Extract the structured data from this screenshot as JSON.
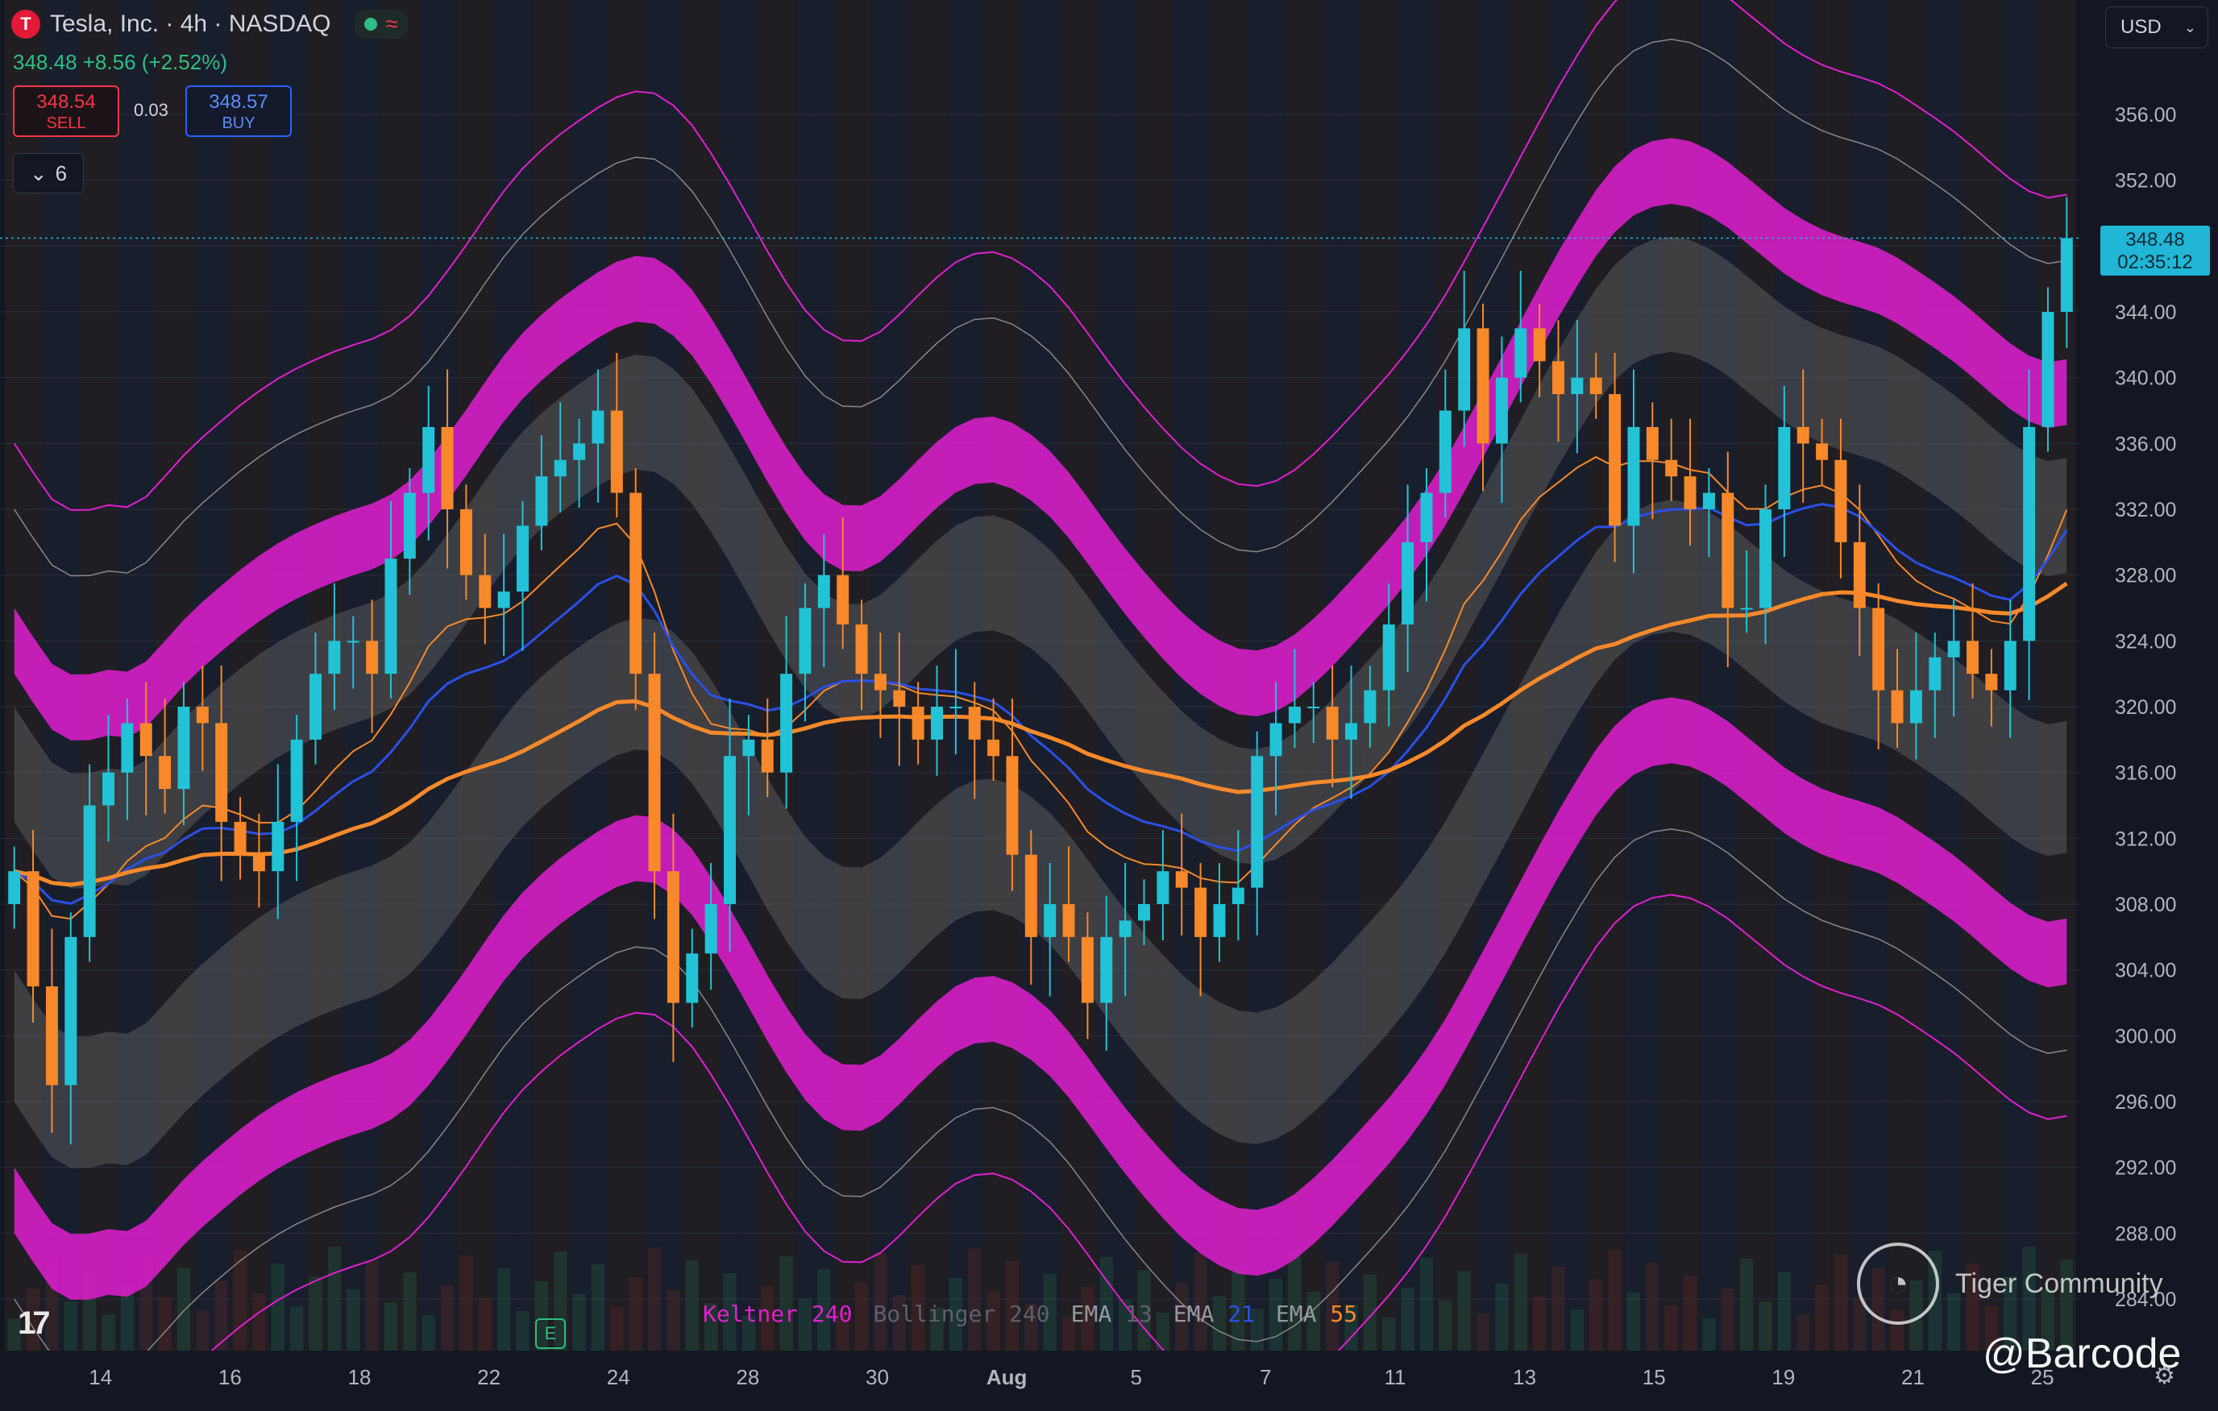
{
  "header": {
    "title": "Tesla, Inc. · 4h · NASDAQ",
    "logo_letter": "T",
    "change": "348.48 +8.56 (+2.52%)",
    "sell_price": "348.54",
    "sell_label": "SELL",
    "spread": "0.03",
    "buy_price": "348.57",
    "buy_label": "BUY",
    "collapse_count": "6",
    "currency": "USD",
    "price_tag_value": "348.48",
    "price_tag_timer": "02:35:12",
    "earnings_label": "E"
  },
  "legend": {
    "keltner": "Keltner",
    "keltner_len": "240",
    "bollinger": "Bollinger",
    "bollinger_len": "240",
    "ema13": "EMA",
    "ema13_len": "13",
    "ema21": "EMA",
    "ema21_len": "21",
    "ema55": "EMA",
    "ema55_len": "55"
  },
  "watermark": {
    "community": "Tiger Community",
    "author": "@Barcode"
  },
  "colors": {
    "up": "#22c3d6",
    "down": "#f7892a",
    "keltner": "#e01fd0",
    "bollinger": "#888888",
    "ema13": "#f7892a",
    "ema21": "#2a50e8",
    "ema55": "#f7892a",
    "background": "#131722"
  },
  "chart_data": {
    "type": "candlestick",
    "title": "Tesla, Inc. · 4h · NASDAQ",
    "y_ticks": [
      284,
      288,
      292,
      296,
      300,
      304,
      308,
      312,
      316,
      320,
      324,
      328,
      332,
      336,
      340,
      344,
      348,
      352,
      356
    ],
    "y_tick_labels": [
      "284.00",
      "288.00",
      "292.00",
      "296.00",
      "300.00",
      "304.00",
      "308.00",
      "312.00",
      "316.00",
      "320.00",
      "324.00",
      "328.00",
      "332.00",
      "336.00",
      "340.00",
      "344.00",
      "348.00",
      "352.00",
      "356.00"
    ],
    "x_tick_labels": [
      {
        "label": "14",
        "bar": 4
      },
      {
        "label": "16",
        "bar": 10
      },
      {
        "label": "18",
        "bar": 16
      },
      {
        "label": "22",
        "bar": 22
      },
      {
        "label": "24",
        "bar": 28
      },
      {
        "label": "28",
        "bar": 34
      },
      {
        "label": "30",
        "bar": 40
      },
      {
        "label": "Aug",
        "bar": 46
      },
      {
        "label": "5",
        "bar": 52
      },
      {
        "label": "7",
        "bar": 58
      },
      {
        "label": "11",
        "bar": 64
      },
      {
        "label": "13",
        "bar": 70
      },
      {
        "label": "15",
        "bar": 76
      },
      {
        "label": "19",
        "bar": 82
      },
      {
        "label": "21",
        "bar": 88
      },
      {
        "label": "25",
        "bar": 94
      }
    ],
    "last_price": 348.48,
    "candles_close": [
      310,
      303,
      297,
      306,
      314,
      316,
      319,
      317,
      315,
      320,
      319,
      313,
      311,
      310,
      313,
      318,
      322,
      324,
      324,
      322,
      329,
      333,
      337,
      332,
      328,
      326,
      327,
      331,
      334,
      335,
      336,
      338,
      333,
      322,
      310,
      302,
      305,
      308,
      317,
      318,
      316,
      322,
      326,
      328,
      325,
      322,
      321,
      320,
      318,
      320,
      320,
      318,
      317,
      311,
      306,
      308,
      306,
      302,
      306,
      307,
      308,
      310,
      309,
      306,
      308,
      309,
      317,
      319,
      320,
      320,
      318,
      319,
      321,
      325,
      330,
      333,
      338,
      343,
      336,
      340,
      343,
      341,
      339,
      340,
      339,
      331,
      337,
      335,
      334,
      332,
      333,
      326,
      326,
      332,
      337,
      336,
      335,
      330,
      326,
      321,
      319,
      321,
      323,
      324,
      322,
      321,
      324,
      337,
      344,
      348.48
    ],
    "bars_count": 110,
    "keltner_outer_upper": [
      337,
      339,
      341,
      343,
      345,
      346,
      347,
      348,
      349,
      351,
      353,
      355,
      357,
      358,
      360,
      361,
      361,
      362,
      362,
      361,
      359,
      358,
      357,
      356,
      355,
      354,
      353,
      353,
      352,
      351,
      350,
      349,
      348,
      347,
      346,
      346,
      346,
      347,
      348,
      350,
      352,
      354,
      356,
      358,
      359,
      360,
      361,
      361,
      361,
      360,
      359,
      358,
      357,
      356,
      355,
      354,
      352,
      351,
      351,
      352,
      353,
      354,
      355,
      356,
      357,
      358,
      358,
      358,
      357,
      356,
      355,
      354,
      353,
      352,
      351,
      351,
      351,
      352,
      353,
      354,
      356,
      357,
      358,
      359,
      359,
      358,
      357,
      356,
      355,
      353
    ],
    "keltner_note": "bands drawn as smooth curves computed from the closes"
  }
}
